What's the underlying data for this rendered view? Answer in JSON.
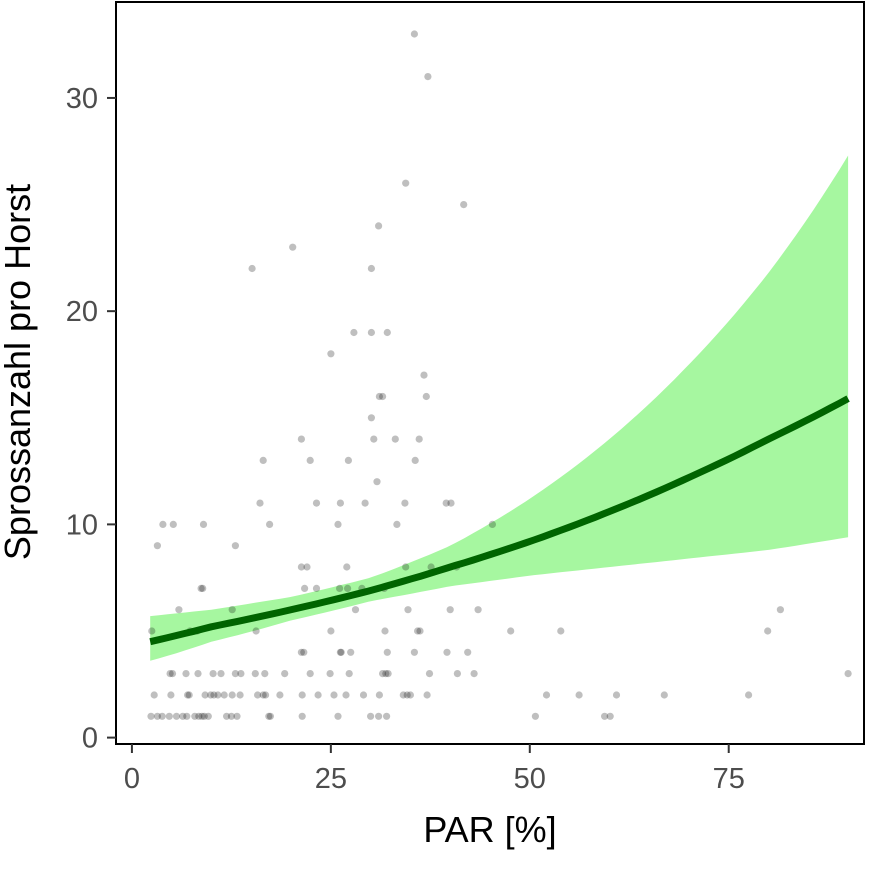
{
  "chart_data": {
    "type": "scatter",
    "xlabel": "PAR [%]",
    "ylabel": "Sprossanzahl pro Horst",
    "xlim": [
      -2,
      92
    ],
    "ylim": [
      -0.3,
      34.5
    ],
    "xticks": [
      0,
      25,
      50,
      75
    ],
    "yticks": [
      0,
      10,
      20,
      30
    ],
    "xtick_labels": [
      "0",
      "25",
      "50",
      "75"
    ],
    "ytick_labels": [
      "0",
      "10",
      "20",
      "30"
    ],
    "grid": false,
    "legend": "none",
    "colors": {
      "points": "#000000",
      "fit_line": "#006400",
      "ci_band": "#a6f7a0",
      "panel_border": "#000000"
    },
    "points": [
      [
        35.5,
        33
      ],
      [
        37.2,
        31
      ],
      [
        34.4,
        26
      ],
      [
        41.7,
        25
      ],
      [
        31,
        24
      ],
      [
        20.2,
        23
      ],
      [
        15.1,
        22
      ],
      [
        30.1,
        22
      ],
      [
        27.9,
        19
      ],
      [
        30.1,
        19
      ],
      [
        32.1,
        19
      ],
      [
        25,
        18
      ],
      [
        36.7,
        17
      ],
      [
        31.1,
        16
      ],
      [
        31.5,
        16
      ],
      [
        37,
        16
      ],
      [
        30.1,
        15
      ],
      [
        21.3,
        14
      ],
      [
        30.4,
        14
      ],
      [
        33.1,
        14
      ],
      [
        36.1,
        14
      ],
      [
        16.5,
        13
      ],
      [
        22.4,
        13
      ],
      [
        27.2,
        13
      ],
      [
        35.6,
        13
      ],
      [
        30.8,
        12
      ],
      [
        16.1,
        11
      ],
      [
        23.2,
        11
      ],
      [
        26.2,
        11
      ],
      [
        29.3,
        11
      ],
      [
        34.3,
        11
      ],
      [
        39.5,
        11
      ],
      [
        40.1,
        11
      ],
      [
        3.9,
        10
      ],
      [
        5.2,
        10
      ],
      [
        9,
        10
      ],
      [
        17.3,
        10
      ],
      [
        25.9,
        10
      ],
      [
        33.3,
        10
      ],
      [
        45.3,
        10
      ],
      [
        3.2,
        9
      ],
      [
        13,
        9
      ],
      [
        21.3,
        8
      ],
      [
        22,
        8
      ],
      [
        27,
        8
      ],
      [
        34.4,
        8
      ],
      [
        37.6,
        8
      ],
      [
        40.8,
        8
      ],
      [
        8.9,
        7
      ],
      [
        8.7,
        7
      ],
      [
        21.7,
        7
      ],
      [
        23.2,
        7
      ],
      [
        26.1,
        7
      ],
      [
        27.1,
        7
      ],
      [
        28.9,
        7
      ],
      [
        31.7,
        7
      ],
      [
        5.9,
        6
      ],
      [
        12.6,
        6
      ],
      [
        28.1,
        6
      ],
      [
        34.7,
        6
      ],
      [
        40,
        6
      ],
      [
        43.5,
        6
      ],
      [
        81.5,
        6
      ],
      [
        2.5,
        5
      ],
      [
        7.3,
        5
      ],
      [
        8.2,
        5
      ],
      [
        15.6,
        5
      ],
      [
        25,
        5
      ],
      [
        31.8,
        5
      ],
      [
        35.9,
        5
      ],
      [
        36.2,
        5
      ],
      [
        47.6,
        5
      ],
      [
        53.9,
        5
      ],
      [
        79.9,
        5
      ],
      [
        21.3,
        4
      ],
      [
        21.6,
        4
      ],
      [
        26.2,
        4
      ],
      [
        26.3,
        4
      ],
      [
        27.5,
        4
      ],
      [
        32.1,
        4
      ],
      [
        35.5,
        4
      ],
      [
        39.6,
        4
      ],
      [
        42.2,
        4
      ],
      [
        4.8,
        3
      ],
      [
        5.1,
        3
      ],
      [
        6.8,
        3
      ],
      [
        8.3,
        3
      ],
      [
        10.2,
        3
      ],
      [
        11.2,
        3
      ],
      [
        13,
        3
      ],
      [
        13.7,
        3
      ],
      [
        15.5,
        3
      ],
      [
        16.7,
        3
      ],
      [
        19.2,
        3
      ],
      [
        22.4,
        3
      ],
      [
        24.9,
        3
      ],
      [
        27.3,
        3
      ],
      [
        31.5,
        3
      ],
      [
        31.9,
        3
      ],
      [
        32.2,
        3
      ],
      [
        37.4,
        3
      ],
      [
        40.9,
        3
      ],
      [
        43,
        3
      ],
      [
        90,
        3
      ],
      [
        2.8,
        2
      ],
      [
        4.9,
        2
      ],
      [
        7,
        2
      ],
      [
        7.2,
        2
      ],
      [
        9.2,
        2
      ],
      [
        9.9,
        2
      ],
      [
        10.3,
        2
      ],
      [
        10.8,
        2
      ],
      [
        11.6,
        2
      ],
      [
        12.6,
        2
      ],
      [
        13.6,
        2
      ],
      [
        15.8,
        2
      ],
      [
        16.5,
        2
      ],
      [
        16.8,
        2
      ],
      [
        18.6,
        2
      ],
      [
        21.4,
        2
      ],
      [
        23.4,
        2
      ],
      [
        25.4,
        2
      ],
      [
        26.9,
        2
      ],
      [
        29.1,
        2
      ],
      [
        31.1,
        2
      ],
      [
        34.1,
        2
      ],
      [
        34.6,
        2
      ],
      [
        35,
        2
      ],
      [
        37.1,
        2
      ],
      [
        52.1,
        2
      ],
      [
        56.2,
        2
      ],
      [
        60.9,
        2
      ],
      [
        66.9,
        2
      ],
      [
        77.5,
        2
      ],
      [
        2.4,
        1
      ],
      [
        3.2,
        1
      ],
      [
        3.8,
        1
      ],
      [
        4.7,
        1
      ],
      [
        5.6,
        1
      ],
      [
        6.4,
        1
      ],
      [
        6.9,
        1
      ],
      [
        7.9,
        1
      ],
      [
        8.4,
        1
      ],
      [
        8.8,
        1
      ],
      [
        9.1,
        1
      ],
      [
        9.6,
        1
      ],
      [
        11.9,
        1
      ],
      [
        12.5,
        1
      ],
      [
        13.2,
        1
      ],
      [
        17.2,
        1
      ],
      [
        17.4,
        1
      ],
      [
        21.4,
        1
      ],
      [
        25.9,
        1
      ],
      [
        30,
        1
      ],
      [
        31,
        1
      ],
      [
        32,
        1
      ],
      [
        50.7,
        1
      ],
      [
        59.4,
        1
      ],
      [
        60.1,
        1
      ]
    ],
    "fit": {
      "x": [
        2.3,
        10,
        20,
        30,
        40,
        50,
        60,
        70,
        80,
        90
      ],
      "y": [
        4.5,
        5.2,
        6.0,
        6.9,
        8.0,
        9.2,
        10.6,
        12.2,
        14.0,
        15.9
      ],
      "lower": [
        3.6,
        4.5,
        5.5,
        6.4,
        7.1,
        7.6,
        8.0,
        8.4,
        8.8,
        9.4
      ],
      "upper": [
        5.7,
        6.0,
        6.6,
        7.5,
        9.0,
        11.2,
        14.0,
        17.5,
        21.8,
        27.3
      ]
    }
  }
}
